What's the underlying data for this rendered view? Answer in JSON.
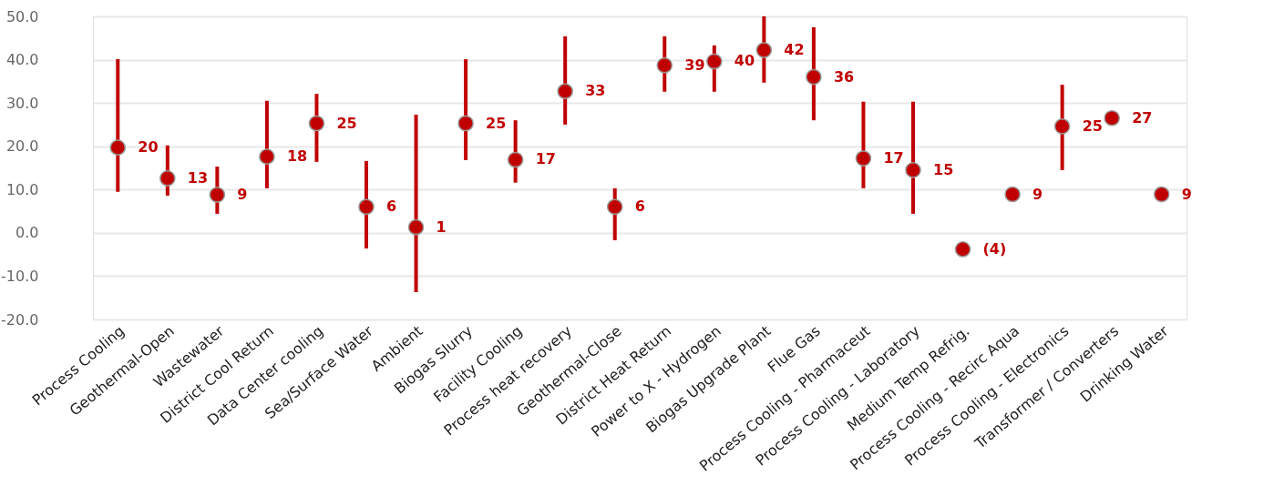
{
  "chart_data": {
    "type": "scatter",
    "categories": [
      "Process Cooling",
      "Geothermal-Open",
      "Wastewater",
      "District Cool Return",
      "Data Center cooling",
      "Sea/Surface Water",
      "Ambient",
      "Biogas Slurry",
      "Facility Cooling",
      "Process heat recovery",
      "Geothermal-Close",
      "District Heat Return",
      "Power to X - Hydrogen",
      "Biogas Upgrade Plant",
      "Flue Gas",
      "Process Cooling - Pharmaceut",
      "Process Cooling - Laboratory",
      "Medium Temp Refrig.",
      "Process Cooling - Recirc Aqua",
      "Process Cooling - Electronics",
      "Transformer  / Converters",
      "Drinking Water"
    ],
    "values": [
      19.7,
      12.6,
      8.8,
      17.6,
      25.3,
      6.0,
      1.3,
      25.3,
      16.9,
      32.7,
      6.0,
      38.7,
      39.6,
      42.2,
      36.0,
      17.2,
      14.5,
      -3.8,
      8.9,
      24.6,
      26.5,
      8.9
    ],
    "errors": [
      [
        9.5,
        40.1
      ],
      [
        8.6,
        20.2
      ],
      [
        4.4,
        15.3
      ],
      [
        10.3,
        30.5
      ],
      [
        16.4,
        32.1
      ],
      [
        -3.6,
        16.6
      ],
      [
        -13.7,
        27.3
      ],
      [
        16.8,
        40.1
      ],
      [
        11.6,
        26.0
      ],
      [
        25.0,
        45.4
      ],
      [
        -1.7,
        10.3
      ],
      [
        32.6,
        45.4
      ],
      [
        32.6,
        43.3
      ],
      [
        34.7,
        50.0
      ],
      [
        26.0,
        47.5
      ],
      [
        10.3,
        30.3
      ],
      [
        4.4,
        30.3
      ],
      null,
      null,
      [
        14.5,
        34.2
      ],
      null,
      null
    ],
    "value_labels": [
      "20",
      "13",
      "9",
      "18",
      "25",
      "6",
      "1",
      "25",
      "17",
      "33",
      "6",
      "39",
      "40",
      "42",
      "36",
      "17",
      "15",
      "(4)",
      "9",
      "25",
      "27",
      "9"
    ],
    "color": "#c00000",
    "marker": "circle",
    "ylim": [
      -20,
      50
    ],
    "yticks": [
      {
        "value": -20,
        "label": "-20.0"
      },
      {
        "value": -10,
        "label": "-10.0"
      },
      {
        "value": 0,
        "label": "0.0"
      },
      {
        "value": 10,
        "label": "10.0"
      },
      {
        "value": 20,
        "label": "20.0"
      },
      {
        "value": 30,
        "label": "30.0"
      },
      {
        "value": 40,
        "label": "40.0"
      },
      {
        "value": 50,
        "label": "50.0"
      }
    ],
    "grid": "y"
  }
}
